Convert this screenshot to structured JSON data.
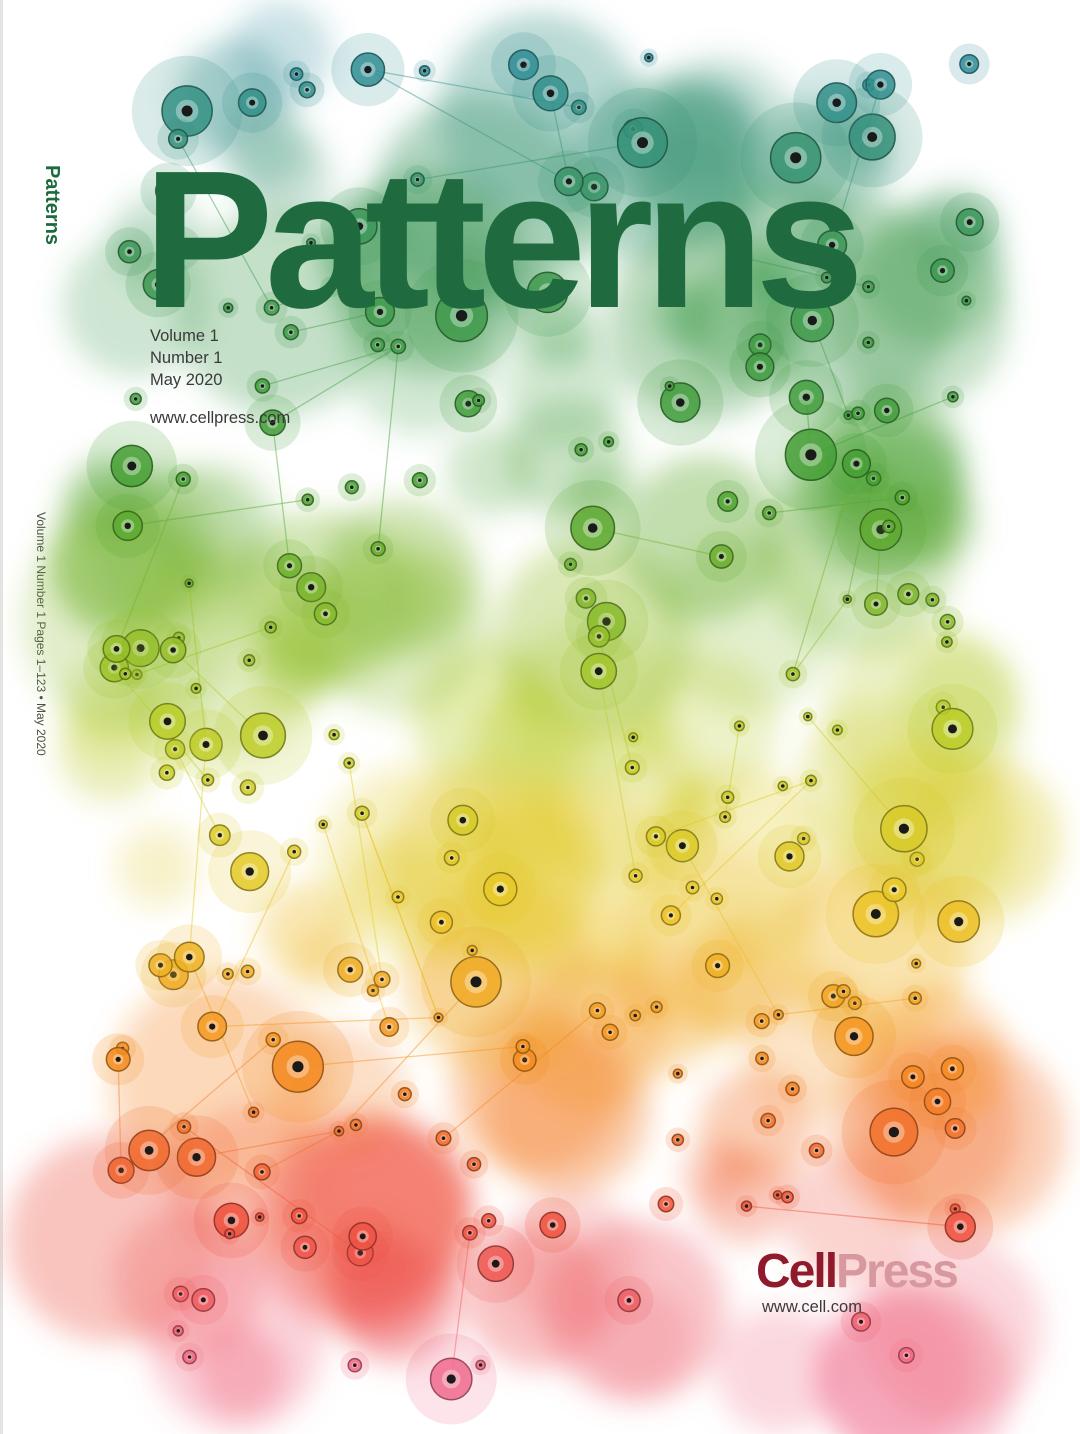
{
  "journal": {
    "title": "Patterns",
    "volume": "Volume 1",
    "number": "Number 1",
    "date": "May 2020",
    "website": "www.cellpress.com"
  },
  "spine": {
    "title": "Patterns",
    "meta": "Volume 1 Number 1 Pages 1–123 • May 2020"
  },
  "publisher": {
    "logo_part1": "Cell",
    "logo_part2": "Press",
    "website": "www.cell.com"
  },
  "colors": {
    "title_green": "#1f6b3f",
    "cell_red": "#8f1a2c",
    "press_pink": "#d7989f",
    "teal": "#2e8c93",
    "green": "#3d9a3a",
    "yellow": "#d9d13a",
    "orange": "#f08a1c",
    "red": "#e5443b",
    "pink": "#ee7f98"
  }
}
